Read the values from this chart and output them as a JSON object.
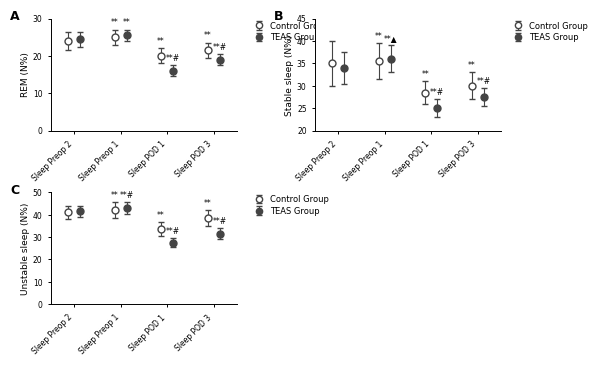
{
  "A": {
    "title": "A",
    "ylabel": "REM (N%)",
    "ylim": [
      0,
      30
    ],
    "yticks": [
      0,
      10,
      20,
      30
    ],
    "categories": [
      "Sleep Preop 2",
      "Sleep Preop 1",
      "Sleep POD 1",
      "Sleep POD 3"
    ],
    "control_mean": [
      24.0,
      25.0,
      20.0,
      21.5
    ],
    "control_sd": [
      2.5,
      2.0,
      2.0,
      2.0
    ],
    "teas_mean": [
      24.5,
      25.5,
      16.0,
      19.0
    ],
    "teas_sd": [
      2.0,
      1.5,
      1.5,
      1.5
    ],
    "control_annot": [
      "",
      "**",
      "**",
      "**"
    ],
    "teas_annot": [
      "",
      "**",
      "**#",
      "**#"
    ],
    "teas_special": [
      false,
      false,
      true,
      false
    ],
    "ctrl_special": [
      false,
      false,
      false,
      false
    ]
  },
  "B": {
    "title": "B",
    "ylabel": "Stable sleep (N%)",
    "ylim": [
      20,
      45
    ],
    "yticks": [
      20,
      25,
      30,
      35,
      40,
      45
    ],
    "categories": [
      "Sleep Preop 2",
      "Sleep Preop 1",
      "Sleep POD 1",
      "Sleep POD 3"
    ],
    "control_mean": [
      35.0,
      35.5,
      28.5,
      30.0
    ],
    "control_sd": [
      5.0,
      4.0,
      2.5,
      3.0
    ],
    "teas_mean": [
      34.0,
      36.0,
      25.0,
      27.5
    ],
    "teas_sd": [
      3.5,
      3.0,
      2.0,
      2.0
    ],
    "control_annot": [
      "",
      "**",
      "**",
      "**"
    ],
    "teas_annot": [
      "",
      "**▲",
      "**#",
      "**#"
    ],
    "teas_special": [
      false,
      false,
      false,
      false
    ],
    "ctrl_special": [
      false,
      false,
      false,
      false
    ]
  },
  "C": {
    "title": "C",
    "ylabel": "Unstable sleep (N%)",
    "ylim": [
      0,
      50
    ],
    "yticks": [
      0,
      10,
      20,
      30,
      40,
      50
    ],
    "categories": [
      "Sleep Preop 2",
      "Sleep Preop 1",
      "Sleep POD 1",
      "Sleep POD 3"
    ],
    "control_mean": [
      41.0,
      42.0,
      33.5,
      38.5
    ],
    "control_sd": [
      3.0,
      3.5,
      3.0,
      3.5
    ],
    "teas_mean": [
      41.5,
      43.0,
      27.5,
      31.5
    ],
    "teas_sd": [
      2.5,
      2.5,
      2.0,
      2.5
    ],
    "control_annot": [
      "",
      "**",
      "**",
      "**"
    ],
    "teas_annot": [
      "",
      "**#",
      "**#",
      "**#"
    ],
    "teas_special": [
      false,
      false,
      false,
      false
    ],
    "ctrl_special": [
      false,
      false,
      false,
      false
    ]
  },
  "legend_labels": [
    "Control Group",
    "TEAS Group"
  ],
  "control_color": "white",
  "control_edge": "#444444",
  "teas_color": "#444444",
  "marker_size": 5,
  "capsize": 2.5,
  "linewidth": 0.8,
  "elinewidth": 0.8,
  "annot_fontsize": 5.5,
  "label_fontsize": 6.5,
  "tick_fontsize": 5.5,
  "legend_fontsize": 6.0,
  "panel_label_fontsize": 9
}
